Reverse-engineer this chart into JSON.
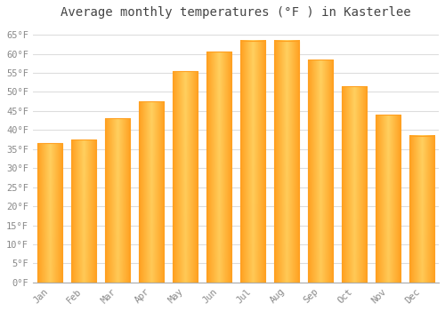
{
  "title": "Average monthly temperatures (°F ) in Kasterlee",
  "months": [
    "Jan",
    "Feb",
    "Mar",
    "Apr",
    "May",
    "Jun",
    "Jul",
    "Aug",
    "Sep",
    "Oct",
    "Nov",
    "Dec"
  ],
  "values": [
    36.5,
    37.5,
    43.0,
    47.5,
    55.5,
    60.5,
    63.5,
    63.5,
    58.5,
    51.5,
    44.0,
    38.5
  ],
  "bar_color_light": "#FFD060",
  "bar_color_dark": "#FFA020",
  "background_color": "#FFFFFF",
  "plot_bg_color": "#FFFFFF",
  "grid_color": "#DDDDDD",
  "text_color": "#888888",
  "title_color": "#444444",
  "ylim": [
    0,
    68
  ],
  "yticks": [
    0,
    5,
    10,
    15,
    20,
    25,
    30,
    35,
    40,
    45,
    50,
    55,
    60,
    65
  ],
  "ytick_labels": [
    "0°F",
    "5°F",
    "10°F",
    "15°F",
    "20°F",
    "25°F",
    "30°F",
    "35°F",
    "40°F",
    "45°F",
    "50°F",
    "55°F",
    "60°F",
    "65°F"
  ],
  "title_fontsize": 10,
  "tick_fontsize": 7.5,
  "font_family": "monospace"
}
